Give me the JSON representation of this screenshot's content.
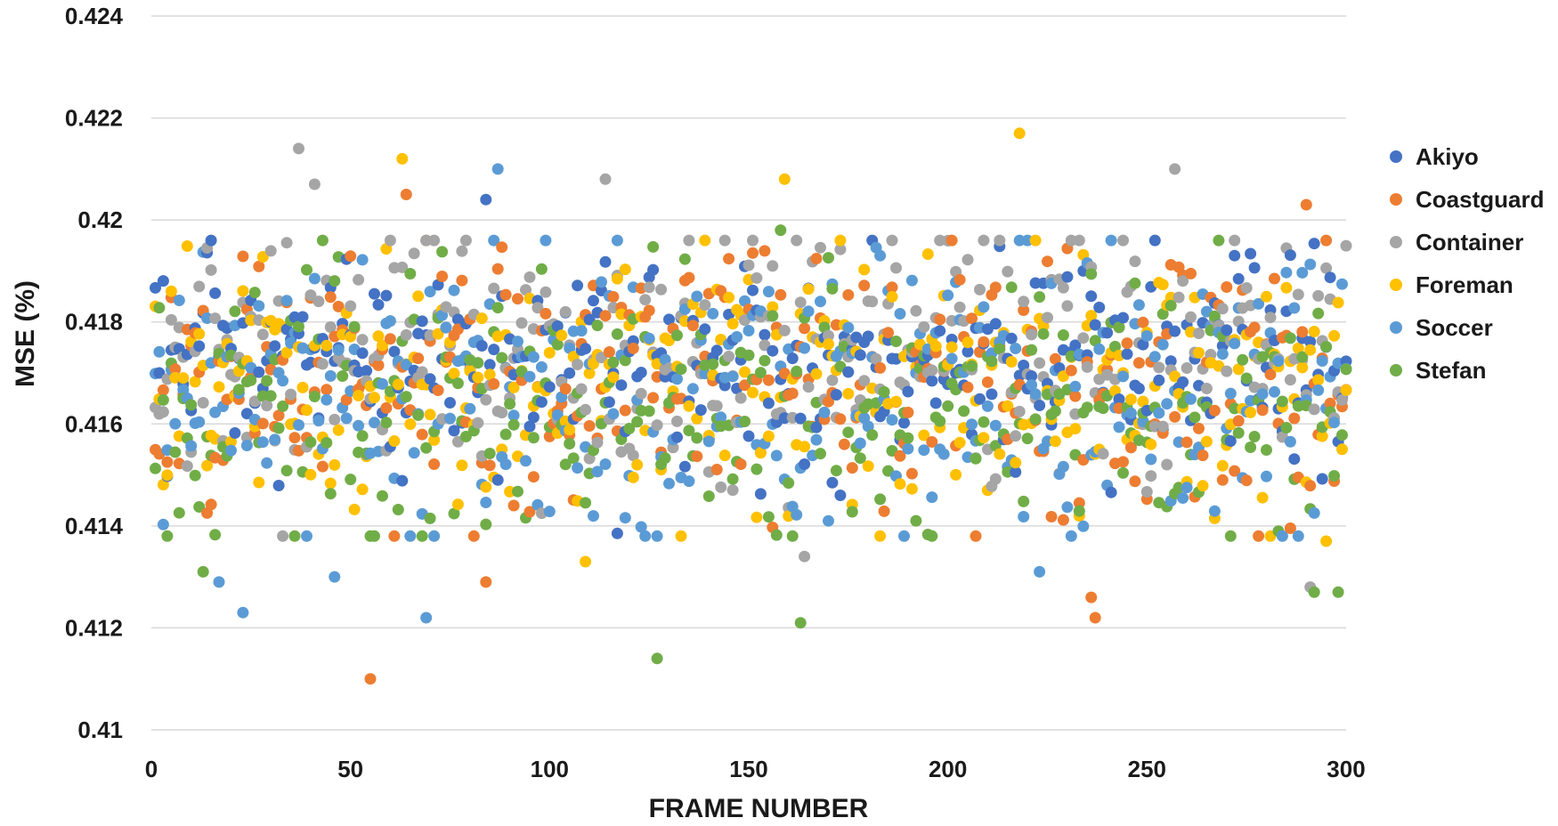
{
  "chart_data": {
    "type": "scatter",
    "title": "",
    "xlabel": "FRAME NUMBER",
    "ylabel": "MSE (%)",
    "xlim": [
      0,
      300
    ],
    "ylim": [
      0.41,
      0.424
    ],
    "x_ticks": [
      "0",
      "50",
      "100",
      "150",
      "200",
      "250",
      "300"
    ],
    "y_ticks": [
      "0.41",
      "0.412",
      "0.414",
      "0.416",
      "0.418",
      "0.42",
      "0.422",
      "0.424"
    ],
    "grid": "horizontal",
    "legend_position": "right",
    "point_sampling": "one point per frame per series, frames 1-300",
    "series": [
      {
        "name": "Akiyo",
        "color": "#4472C4",
        "center": 0.4171,
        "spread": 0.0011,
        "extremes": [
          {
            "x": 84,
            "y": 0.4204
          },
          {
            "x": 181,
            "y": 0.4196
          },
          {
            "x": 173,
            "y": 0.4146
          }
        ]
      },
      {
        "name": "Coastguard",
        "color": "#ED7D31",
        "center": 0.4168,
        "spread": 0.0014,
        "extremes": [
          {
            "x": 55,
            "y": 0.411
          },
          {
            "x": 64,
            "y": 0.4205
          },
          {
            "x": 236,
            "y": 0.4126
          },
          {
            "x": 237,
            "y": 0.4122
          },
          {
            "x": 290,
            "y": 0.4203
          },
          {
            "x": 84,
            "y": 0.4129
          }
        ]
      },
      {
        "name": "Container",
        "color": "#A5A5A5",
        "center": 0.4174,
        "spread": 0.0013,
        "extremes": [
          {
            "x": 37,
            "y": 0.4214
          },
          {
            "x": 41,
            "y": 0.4207
          },
          {
            "x": 114,
            "y": 0.4208
          },
          {
            "x": 257,
            "y": 0.421
          },
          {
            "x": 164,
            "y": 0.4134
          },
          {
            "x": 291,
            "y": 0.4128
          }
        ]
      },
      {
        "name": "Foreman",
        "color": "#FFC000",
        "center": 0.4169,
        "spread": 0.0013,
        "extremes": [
          {
            "x": 63,
            "y": 0.4212
          },
          {
            "x": 159,
            "y": 0.4208
          },
          {
            "x": 218,
            "y": 0.4217
          },
          {
            "x": 109,
            "y": 0.4133
          },
          {
            "x": 295,
            "y": 0.4137
          }
        ]
      },
      {
        "name": "Soccer",
        "color": "#5B9BD5",
        "center": 0.4166,
        "spread": 0.0014,
        "extremes": [
          {
            "x": 87,
            "y": 0.421
          },
          {
            "x": 23,
            "y": 0.4123
          },
          {
            "x": 69,
            "y": 0.4122
          },
          {
            "x": 223,
            "y": 0.4131
          },
          {
            "x": 46,
            "y": 0.413
          },
          {
            "x": 17,
            "y": 0.4129
          }
        ]
      },
      {
        "name": "Stefan",
        "color": "#70AD47",
        "center": 0.4164,
        "spread": 0.0013,
        "extremes": [
          {
            "x": 127,
            "y": 0.4114
          },
          {
            "x": 163,
            "y": 0.4121
          },
          {
            "x": 292,
            "y": 0.4127
          },
          {
            "x": 298,
            "y": 0.4127
          },
          {
            "x": 158,
            "y": 0.4198
          },
          {
            "x": 13,
            "y": 0.4131
          }
        ]
      }
    ]
  }
}
